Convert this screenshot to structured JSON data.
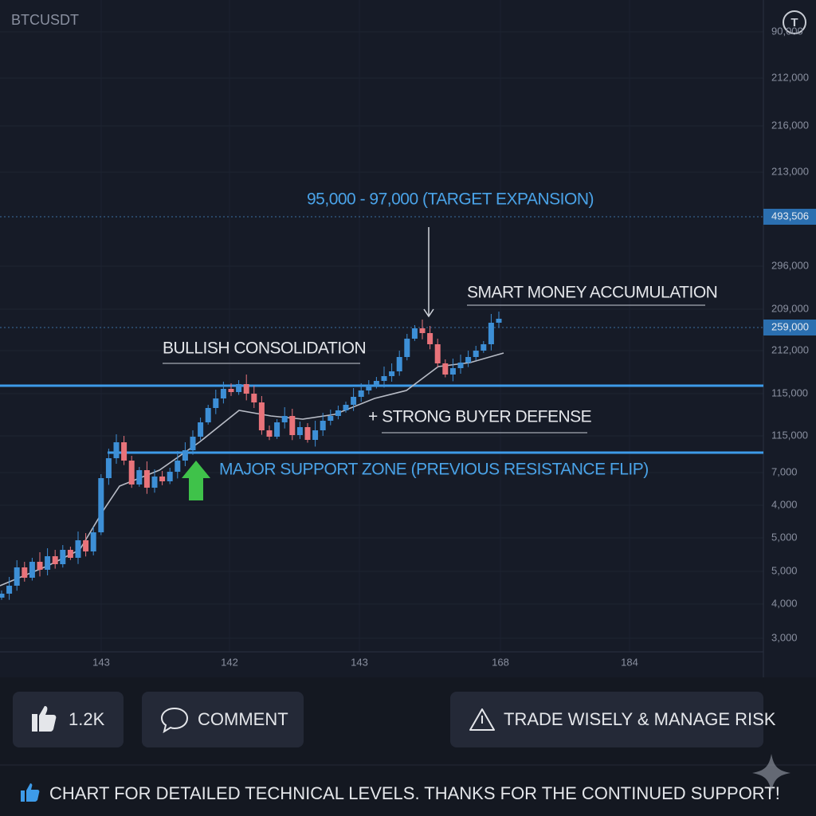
{
  "symbol": "BTCUSDT",
  "price_axis": [
    "90,000",
    "212,000",
    "216,000",
    "213,000",
    "296,000",
    "209,000",
    "212,000",
    "115,000",
    "115,000",
    "7,000",
    "4,000",
    "5,000",
    "5,000",
    "4,000",
    "3,000"
  ],
  "price_tags": [
    "493,506",
    "259,000"
  ],
  "time_axis": [
    "143",
    "142",
    "143",
    "168",
    "184"
  ],
  "annotations": {
    "target": "95,000 - 97,000 (TARGET EXPANSION)",
    "smart_money": "SMART MONEY ACCUMULATION",
    "consolidation": "BULLISH CONSOLIDATION",
    "buyer_defense": "+ STRONG BUYER DEFENSE",
    "support": "MAJOR SUPPORT ZONE (PREVIOUS RESISTANCE FLIP)"
  },
  "buttons": {
    "likes": "1.2K",
    "comment": "COMMENT",
    "risk": "TRADE WISELY & MANAGE RISK"
  },
  "footer": "CHART FOR DETAILED TECHNICAL LEVELS. THANKS FOR THE CONTINUED SUPPORT!"
}
